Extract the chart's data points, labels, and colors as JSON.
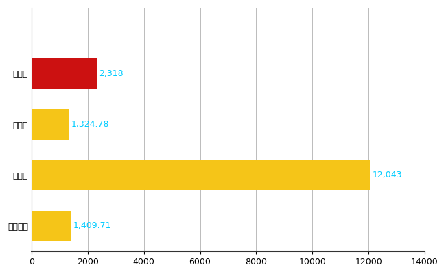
{
  "categories": [
    "全国平均",
    "県最大",
    "県平均",
    "入間市"
  ],
  "values": [
    1409.71,
    12043,
    1324.78,
    2318
  ],
  "bar_colors": [
    "#F5C518",
    "#F5C518",
    "#F5C518",
    "#CC1111"
  ],
  "labels": [
    "1,409.71",
    "12,043",
    "1,324.78",
    "2,318"
  ],
  "label_color": "#00CCFF",
  "xlim": [
    0,
    14000
  ],
  "xticks": [
    0,
    2000,
    4000,
    6000,
    8000,
    10000,
    12000,
    14000
  ],
  "grid_color": "#BBBBBB",
  "bar_height": 0.6,
  "figsize": [
    6.5,
    4.0
  ],
  "dpi": 100,
  "label_fontsize": 9,
  "tick_fontsize": 9,
  "hatch": ".."
}
